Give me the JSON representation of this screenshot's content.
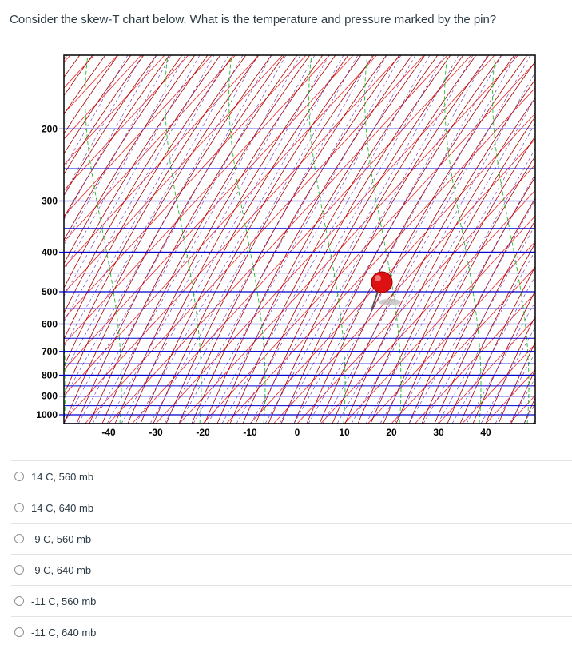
{
  "question": "Consider the skew-T chart below. What is the temperature and pressure marked by the pin?",
  "chart_data": {
    "type": "skew-t",
    "pressure_levels": [
      200,
      300,
      400,
      500,
      600,
      700,
      800,
      900,
      1000
    ],
    "temperature_ticks": [
      -40,
      -30,
      -20,
      -10,
      0,
      10,
      20,
      30,
      40
    ],
    "isobar_color": "#0000cc",
    "isotherm_color": "#ee2222",
    "dry_adiabat_color": "#aa0000",
    "moist_adiabat_color": "#22bb22",
    "mixing_ratio_color": "#7a45b8",
    "marker": "pin"
  },
  "answers": [
    {
      "label": "14 C, 560 mb"
    },
    {
      "label": "14 C, 640 mb"
    },
    {
      "label": "-9 C, 560 mb"
    },
    {
      "label": "-9 C, 640 mb"
    },
    {
      "label": "-11 C, 560 mb"
    },
    {
      "label": "-11 C, 640 mb"
    }
  ]
}
